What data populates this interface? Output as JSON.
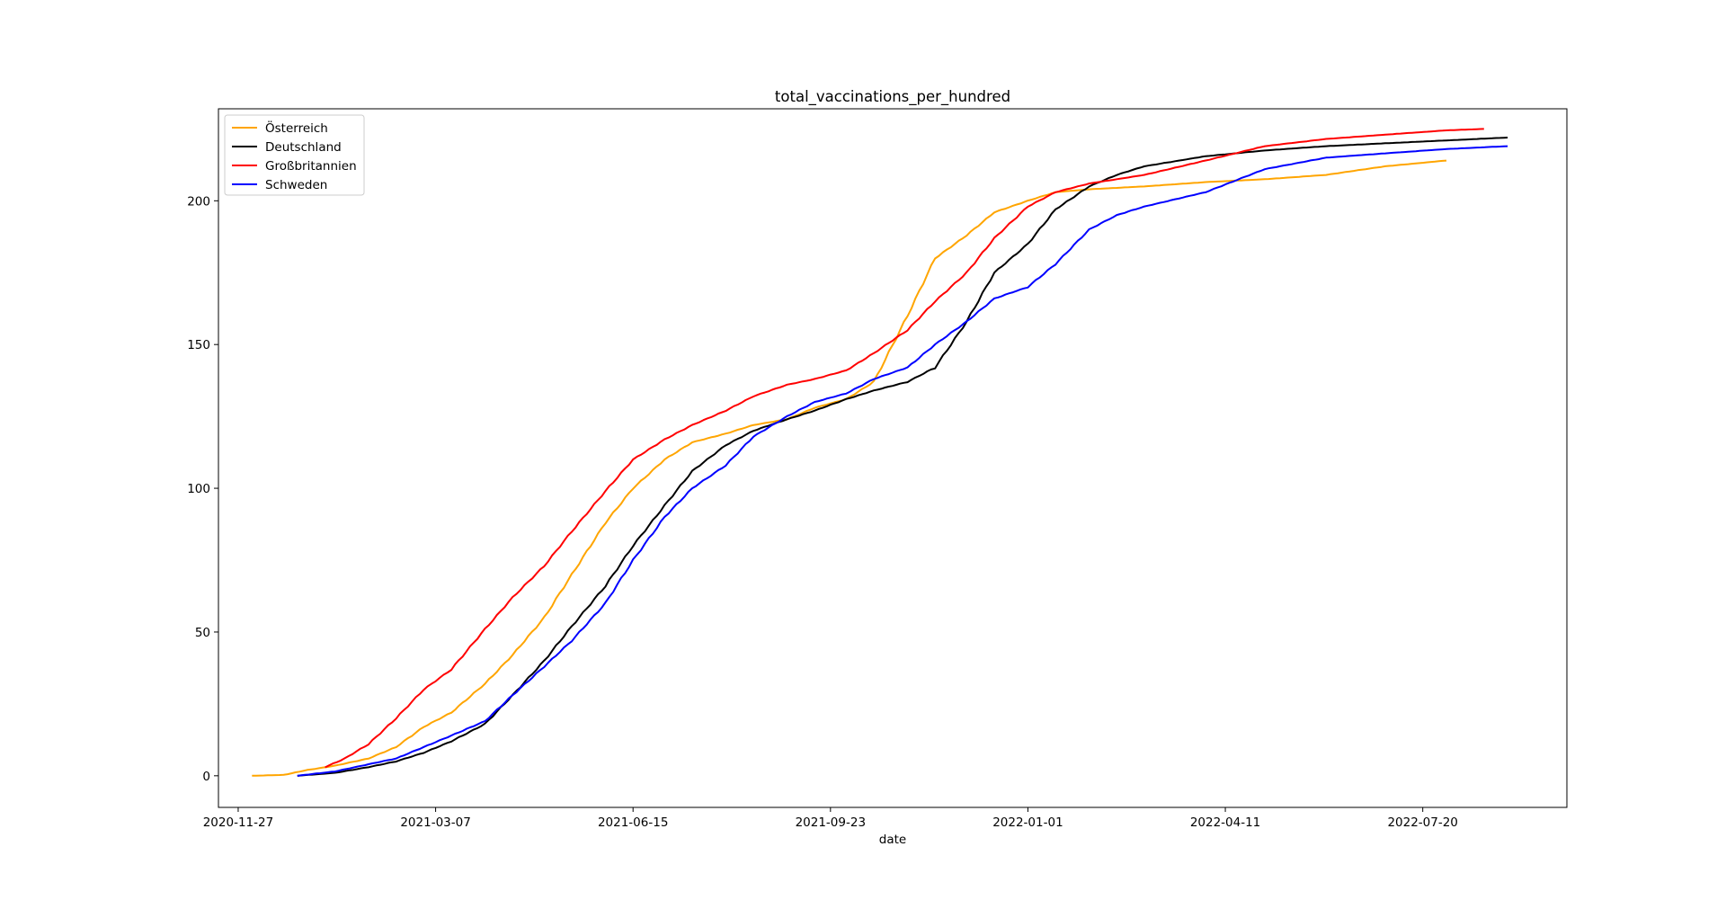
{
  "chart_data": {
    "type": "line",
    "title": "total_vaccinations_per_hundred",
    "xlabel": "date",
    "ylabel": "",
    "x_type": "date",
    "xlim": [
      "2020-11-17",
      "2022-10-01"
    ],
    "ylim": [
      -11,
      232
    ],
    "x_ticks": [
      "2020-11-27",
      "2021-03-07",
      "2021-06-15",
      "2021-09-23",
      "2022-01-01",
      "2022-04-11",
      "2022-07-20"
    ],
    "y_ticks": [
      0,
      50,
      100,
      150,
      200
    ],
    "grid": false,
    "legend_position": "top-left",
    "series": [
      {
        "name": "Österreich",
        "color": "#ffa500",
        "points": [
          [
            "2020-12-04",
            0
          ],
          [
            "2020-12-20",
            0.3
          ],
          [
            "2021-01-01",
            2
          ],
          [
            "2021-01-15",
            3.5
          ],
          [
            "2021-02-01",
            6
          ],
          [
            "2021-02-15",
            10
          ],
          [
            "2021-03-01",
            17
          ],
          [
            "2021-03-15",
            22
          ],
          [
            "2021-04-01",
            32
          ],
          [
            "2021-04-15",
            42
          ],
          [
            "2021-05-01",
            55
          ],
          [
            "2021-05-15",
            70
          ],
          [
            "2021-06-01",
            88
          ],
          [
            "2021-06-15",
            100
          ],
          [
            "2021-07-01",
            110
          ],
          [
            "2021-07-15",
            116
          ],
          [
            "2021-08-01",
            119
          ],
          [
            "2021-08-15",
            122
          ],
          [
            "2021-09-01",
            124
          ],
          [
            "2021-09-15",
            128
          ],
          [
            "2021-10-01",
            131
          ],
          [
            "2021-10-15",
            137
          ],
          [
            "2021-11-01",
            160
          ],
          [
            "2021-11-15",
            180
          ],
          [
            "2021-12-01",
            188
          ],
          [
            "2021-12-15",
            196
          ],
          [
            "2022-01-01",
            200
          ],
          [
            "2022-01-15",
            203
          ],
          [
            "2022-02-01",
            204
          ],
          [
            "2022-03-01",
            205
          ],
          [
            "2022-04-01",
            206.5
          ],
          [
            "2022-05-01",
            207.5
          ],
          [
            "2022-06-01",
            209
          ],
          [
            "2022-07-01",
            212
          ],
          [
            "2022-08-01",
            214
          ]
        ]
      },
      {
        "name": "Deutschland",
        "color": "#000000",
        "points": [
          [
            "2020-12-27",
            0
          ],
          [
            "2021-01-15",
            1
          ],
          [
            "2021-02-01",
            3
          ],
          [
            "2021-02-15",
            5
          ],
          [
            "2021-03-01",
            8
          ],
          [
            "2021-03-15",
            12
          ],
          [
            "2021-04-01",
            18
          ],
          [
            "2021-04-15",
            28
          ],
          [
            "2021-05-01",
            40
          ],
          [
            "2021-05-15",
            52
          ],
          [
            "2021-06-01",
            66
          ],
          [
            "2021-06-15",
            80
          ],
          [
            "2021-07-01",
            94
          ],
          [
            "2021-07-15",
            106
          ],
          [
            "2021-08-01",
            115
          ],
          [
            "2021-08-15",
            120
          ],
          [
            "2021-09-01",
            124
          ],
          [
            "2021-09-15",
            127
          ],
          [
            "2021-10-01",
            131
          ],
          [
            "2021-10-15",
            134
          ],
          [
            "2021-11-01",
            137
          ],
          [
            "2021-11-15",
            142
          ],
          [
            "2021-12-01",
            158
          ],
          [
            "2021-12-15",
            175
          ],
          [
            "2022-01-01",
            185
          ],
          [
            "2022-01-15",
            197
          ],
          [
            "2022-02-01",
            205
          ],
          [
            "2022-02-15",
            209
          ],
          [
            "2022-03-01",
            212
          ],
          [
            "2022-04-01",
            215.5
          ],
          [
            "2022-05-01",
            217.5
          ],
          [
            "2022-06-01",
            219
          ],
          [
            "2022-07-01",
            220
          ],
          [
            "2022-08-01",
            221
          ],
          [
            "2022-09-01",
            222
          ]
        ]
      },
      {
        "name": "Großbritannien",
        "color": "#ff0000",
        "points": [
          [
            "2021-01-10",
            3
          ],
          [
            "2021-01-20",
            6
          ],
          [
            "2021-02-01",
            11
          ],
          [
            "2021-02-15",
            20
          ],
          [
            "2021-03-01",
            30
          ],
          [
            "2021-03-15",
            37
          ],
          [
            "2021-04-01",
            51
          ],
          [
            "2021-04-15",
            62
          ],
          [
            "2021-05-01",
            73
          ],
          [
            "2021-05-15",
            85
          ],
          [
            "2021-06-01",
            99
          ],
          [
            "2021-06-15",
            110
          ],
          [
            "2021-07-01",
            117
          ],
          [
            "2021-07-15",
            122
          ],
          [
            "2021-08-01",
            127
          ],
          [
            "2021-08-15",
            132
          ],
          [
            "2021-09-01",
            136
          ],
          [
            "2021-09-15",
            138
          ],
          [
            "2021-10-01",
            141
          ],
          [
            "2021-10-15",
            147
          ],
          [
            "2021-11-01",
            155
          ],
          [
            "2021-11-15",
            165
          ],
          [
            "2021-12-01",
            175
          ],
          [
            "2021-12-15",
            187
          ],
          [
            "2022-01-01",
            198
          ],
          [
            "2022-01-15",
            203
          ],
          [
            "2022-02-01",
            206
          ],
          [
            "2022-03-01",
            209
          ],
          [
            "2022-04-01",
            214
          ],
          [
            "2022-05-01",
            219
          ],
          [
            "2022-06-01",
            221.5
          ],
          [
            "2022-07-01",
            223
          ],
          [
            "2022-08-01",
            224.5
          ],
          [
            "2022-08-20",
            225
          ]
        ]
      },
      {
        "name": "Schweden",
        "color": "#0000ff",
        "points": [
          [
            "2020-12-27",
            0
          ],
          [
            "2021-01-15",
            1.5
          ],
          [
            "2021-02-01",
            4
          ],
          [
            "2021-02-15",
            6
          ],
          [
            "2021-03-01",
            10
          ],
          [
            "2021-03-15",
            14
          ],
          [
            "2021-04-01",
            19
          ],
          [
            "2021-04-15",
            28
          ],
          [
            "2021-05-01",
            38
          ],
          [
            "2021-05-15",
            47
          ],
          [
            "2021-06-01",
            60
          ],
          [
            "2021-06-15",
            75
          ],
          [
            "2021-07-01",
            90
          ],
          [
            "2021-07-15",
            100
          ],
          [
            "2021-08-01",
            108
          ],
          [
            "2021-08-15",
            118
          ],
          [
            "2021-09-01",
            125
          ],
          [
            "2021-09-15",
            130
          ],
          [
            "2021-10-01",
            133
          ],
          [
            "2021-10-15",
            138
          ],
          [
            "2021-11-01",
            142
          ],
          [
            "2021-11-15",
            150
          ],
          [
            "2021-12-01",
            158
          ],
          [
            "2021-12-15",
            166
          ],
          [
            "2022-01-01",
            170
          ],
          [
            "2022-01-15",
            178
          ],
          [
            "2022-02-01",
            190
          ],
          [
            "2022-02-15",
            195
          ],
          [
            "2022-03-01",
            198
          ],
          [
            "2022-04-01",
            203
          ],
          [
            "2022-05-01",
            211
          ],
          [
            "2022-06-01",
            215
          ],
          [
            "2022-07-01",
            216.5
          ],
          [
            "2022-08-01",
            218
          ],
          [
            "2022-09-01",
            219
          ]
        ]
      }
    ]
  }
}
